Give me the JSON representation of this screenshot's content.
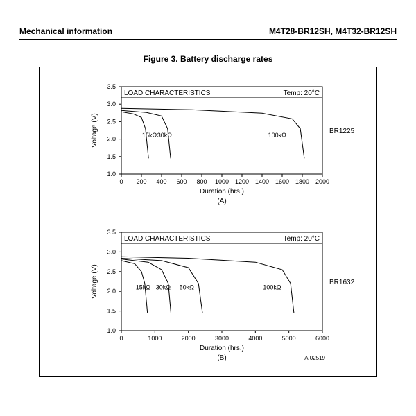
{
  "header": {
    "left": "Mechanical information",
    "right": "M4T28-BR12SH, M4T32-BR12SH"
  },
  "figure": {
    "title": "Figure 3. Battery discharge rates",
    "doc_ref": "AI02519"
  },
  "chartA": {
    "type": "line",
    "box_title_left": "LOAD CHARACTERISTICS",
    "box_title_right": "Temp: 20°C",
    "side_label": "BR1225",
    "xlabel": "Duration (hrs.)",
    "sublabel": "(A)",
    "ylabel": "Voltage (V)",
    "xlim": [
      0,
      2000
    ],
    "xtick_step": 200,
    "ylim": [
      1.0,
      3.5
    ],
    "ytick_step": 0.5,
    "yticks": [
      "1.0",
      "1.5",
      "2.0",
      "2.5",
      "3.0",
      "3.5"
    ],
    "line_color": "#000000",
    "line_width": 1,
    "bg": "#ffffff",
    "series": [
      {
        "label": "15kΩ",
        "label_x": 280,
        "pts": [
          [
            0,
            2.78
          ],
          [
            120,
            2.72
          ],
          [
            200,
            2.62
          ],
          [
            240,
            2.3
          ],
          [
            270,
            1.45
          ]
        ]
      },
      {
        "label": "30kΩ",
        "label_x": 430,
        "pts": [
          [
            0,
            2.82
          ],
          [
            250,
            2.76
          ],
          [
            400,
            2.66
          ],
          [
            460,
            2.3
          ],
          [
            490,
            1.45
          ]
        ]
      },
      {
        "label": "100kΩ",
        "label_x": 1550,
        "pts": [
          [
            0,
            2.88
          ],
          [
            700,
            2.84
          ],
          [
            1400,
            2.74
          ],
          [
            1700,
            2.58
          ],
          [
            1780,
            2.3
          ],
          [
            1820,
            1.45
          ]
        ]
      }
    ]
  },
  "chartB": {
    "type": "line",
    "box_title_left": "LOAD CHARACTERISTICS",
    "box_title_right": "Temp: 20°C",
    "side_label": "BR1632",
    "xlabel": "Duration (hrs.)",
    "sublabel": "(B)",
    "ylabel": "Voltage (V)",
    "xlim": [
      0,
      6000
    ],
    "xtick_step": 1000,
    "ylim": [
      1.0,
      3.5
    ],
    "ytick_step": 0.5,
    "yticks": [
      "1.0",
      "1.5",
      "2.0",
      "2.5",
      "3.0",
      "3.5"
    ],
    "line_color": "#000000",
    "line_width": 1,
    "bg": "#ffffff",
    "series": [
      {
        "label": "15kΩ",
        "label_x": 650,
        "pts": [
          [
            0,
            2.78
          ],
          [
            400,
            2.7
          ],
          [
            600,
            2.5
          ],
          [
            700,
            2.2
          ],
          [
            780,
            1.45
          ]
        ]
      },
      {
        "label": "30kΩ",
        "label_x": 1250,
        "pts": [
          [
            0,
            2.82
          ],
          [
            800,
            2.74
          ],
          [
            1200,
            2.55
          ],
          [
            1400,
            2.2
          ],
          [
            1480,
            1.45
          ]
        ]
      },
      {
        "label": "50kΩ",
        "label_x": 1950,
        "pts": [
          [
            0,
            2.84
          ],
          [
            1200,
            2.78
          ],
          [
            2000,
            2.6
          ],
          [
            2300,
            2.2
          ],
          [
            2420,
            1.45
          ]
        ]
      },
      {
        "label": "100kΩ",
        "label_x": 4500,
        "pts": [
          [
            0,
            2.88
          ],
          [
            2000,
            2.84
          ],
          [
            4000,
            2.74
          ],
          [
            4800,
            2.55
          ],
          [
            5050,
            2.2
          ],
          [
            5150,
            1.45
          ]
        ]
      }
    ]
  }
}
